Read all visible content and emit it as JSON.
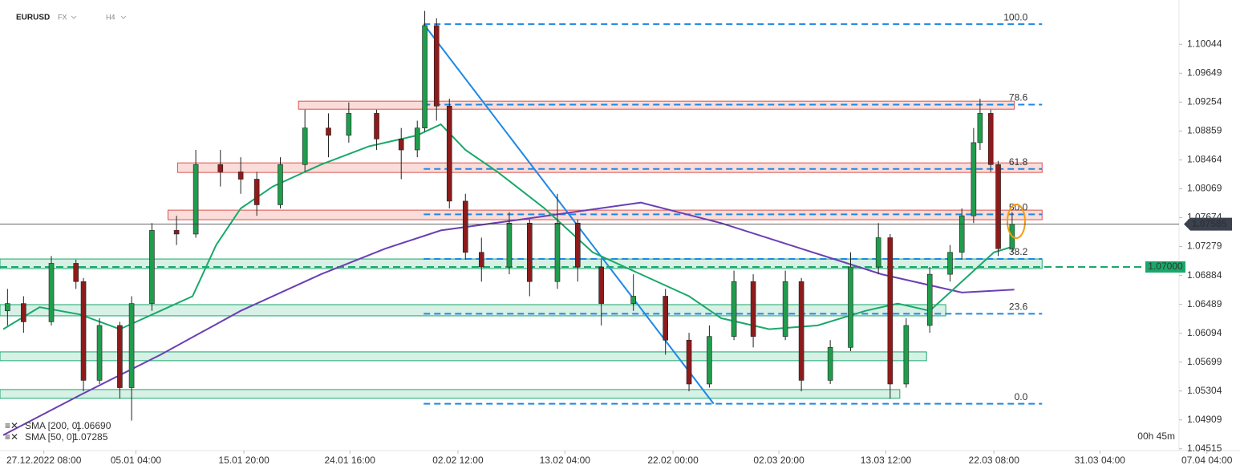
{
  "header": {
    "symbol": "EURUSD",
    "market": "FX",
    "timeframe": "H4"
  },
  "chart_data": {
    "type": "candlestick",
    "x": [
      -3.4,
      -1.9,
      0.7,
      3.0,
      3.7,
      5.2,
      7.1,
      8.2,
      10.1,
      12.4,
      14.2,
      16.5,
      18.4,
      19.9,
      22.1,
      24.4,
      26.6,
      28.5,
      31.1,
      33.4,
      34.9,
      35.6,
      36.7,
      37.9,
      39.4,
      40.9,
      43.5,
      45.4,
      48.0,
      49.9,
      52.1,
      55.1,
      58.1,
      60.3,
      62.2,
      64.5,
      66.3,
      69.3,
      70.8,
      73.5,
      75.4,
      78.0,
      79.1,
      80.6,
      82.8,
      84.7,
      85.8,
      86.9,
      87.5,
      88.5,
      89.2,
      90.5
    ],
    "open": [
      1.064,
      1.065,
      1.0625,
      1.0705,
      1.068,
      1.0545,
      1.062,
      1.0535,
      1.065,
      1.075,
      1.0745,
      1.084,
      1.083,
      1.082,
      1.0785,
      1.084,
      1.089,
      1.088,
      1.091,
      1.0875,
      1.086,
      1.089,
      1.103,
      1.092,
      1.079,
      1.072,
      1.07,
      1.076,
      1.068,
      1.076,
      1.07,
      1.065,
      1.066,
      1.06,
      1.054,
      1.0605,
      1.068,
      1.0605,
      1.068,
      1.0545,
      1.059,
      1.07,
      1.074,
      1.054,
      1.062,
      1.069,
      1.072,
      1.077,
      1.087,
      1.091,
      1.084,
      1.0725
    ],
    "high": [
      1.067,
      1.066,
      1.0715,
      1.071,
      1.0685,
      1.063,
      1.0625,
      1.066,
      1.076,
      1.077,
      1.086,
      1.086,
      1.085,
      1.083,
      1.085,
      1.0915,
      1.091,
      1.0925,
      1.0915,
      1.089,
      1.09,
      1.105,
      1.104,
      1.093,
      1.08,
      1.074,
      1.0775,
      1.0765,
      1.08,
      1.0765,
      1.071,
      1.069,
      1.067,
      1.061,
      1.062,
      1.0695,
      1.069,
      1.0695,
      1.0685,
      1.06,
      1.072,
      1.076,
      1.0745,
      1.063,
      1.07,
      1.073,
      1.078,
      1.089,
      1.093,
      1.0915,
      1.0845,
      1.0775
    ],
    "low": [
      1.062,
      1.061,
      1.062,
      1.067,
      1.053,
      1.054,
      1.052,
      1.049,
      1.064,
      1.073,
      1.074,
      1.081,
      1.08,
      1.077,
      1.078,
      1.083,
      1.085,
      1.087,
      1.086,
      1.082,
      1.085,
      1.0885,
      1.09,
      1.078,
      1.071,
      1.068,
      1.069,
      1.066,
      1.067,
      1.068,
      1.062,
      1.064,
      1.058,
      1.053,
      1.0535,
      1.06,
      1.059,
      1.06,
      1.053,
      1.054,
      1.0585,
      1.069,
      1.052,
      1.0535,
      1.061,
      1.068,
      1.071,
      1.076,
      1.086,
      1.083,
      1.0715,
      1.072
    ],
    "close": [
      1.065,
      1.0625,
      1.0705,
      1.068,
      1.0545,
      1.062,
      1.0535,
      1.065,
      1.075,
      1.0745,
      1.084,
      1.083,
      1.082,
      1.0785,
      1.084,
      1.089,
      1.088,
      1.091,
      1.0875,
      1.086,
      1.089,
      1.103,
      1.092,
      1.079,
      1.072,
      1.07,
      1.076,
      1.068,
      1.076,
      1.07,
      1.065,
      1.066,
      1.06,
      1.054,
      1.0605,
      1.068,
      1.0605,
      1.068,
      1.0545,
      1.059,
      1.07,
      1.074,
      1.054,
      1.062,
      1.069,
      1.072,
      1.077,
      1.087,
      1.091,
      1.084,
      1.0725,
      1.07585
    ],
    "up_color": "#1f9d4c",
    "down_color": "#8e1b1b",
    "xlim": [
      -4.1,
      106.1
    ],
    "xticks": [
      {
        "value": 0,
        "label": "27.12.2022  08:00"
      },
      {
        "value": 8.6,
        "label": "05.01  04:00"
      },
      {
        "value": 18.7,
        "label": "15.01  20:00"
      },
      {
        "value": 28.6,
        "label": "24.01  16:00"
      },
      {
        "value": 38.7,
        "label": "02.02  12:00"
      },
      {
        "value": 48.7,
        "label": "13.02  04:00"
      },
      {
        "value": 58.8,
        "label": "22.02  00:00"
      },
      {
        "value": 68.7,
        "label": "02.03  20:00"
      },
      {
        "value": 78.7,
        "label": "13.03  12:00"
      },
      {
        "value": 88.8,
        "label": "22.03  08:00"
      },
      {
        "value": 98.7,
        "label": "31.03  04:00"
      },
      {
        "value": 108.7,
        "label": "07.04  04:00"
      }
    ],
    "ylim": [
      1.0449,
      1.1065
    ],
    "yticks": [
      1.10044,
      1.09649,
      1.09254,
      1.08859,
      1.08464,
      1.08069,
      1.07674,
      1.07279,
      1.06884,
      1.06489,
      1.06094,
      1.05699,
      1.05304,
      1.04909,
      1.04515
    ],
    "overlays": [
      {
        "name": "SMA [200, 0]",
        "color": "#6a3fb5",
        "x": [
          -3.8,
          3.4,
          10.9,
          18.4,
          25.9,
          31.9,
          37.1,
          44.6,
          55.8,
          63.3,
          70.8,
          78.3,
          85.8,
          90.7
        ],
        "values": [
          1.047,
          1.0525,
          1.058,
          1.064,
          1.069,
          1.0725,
          1.075,
          1.0765,
          1.0788,
          1.076,
          1.0725,
          1.069,
          1.0665,
          1.0669
        ],
        "last_value": {
          "value": 1.0669,
          "label": "1.06690"
        }
      },
      {
        "name": "SMA [50, 0]",
        "color": "#1aa86a",
        "x": [
          -3.8,
          -0.4,
          3.4,
          7.1,
          10.9,
          13.9,
          16.1,
          18.4,
          21.4,
          25.9,
          30.4,
          34.9,
          37.1,
          39.4,
          42.4,
          46.8,
          51.3,
          55.8,
          60.3,
          63.3,
          67.8,
          72.3,
          76.8,
          79.8,
          82.8,
          85.8,
          88.8,
          90.7
        ],
        "values": [
          1.0615,
          1.0645,
          1.0635,
          1.0615,
          1.064,
          1.066,
          1.073,
          1.078,
          1.081,
          1.084,
          1.0865,
          1.088,
          1.0895,
          1.086,
          1.083,
          1.078,
          1.072,
          1.069,
          1.066,
          1.063,
          1.0615,
          1.062,
          1.064,
          1.065,
          1.064,
          1.068,
          1.072,
          1.07285
        ],
        "last_value": {
          "value": 1.07285,
          "label": "1.07285"
        }
      }
    ],
    "fibonacci": {
      "color": "#1e88e5",
      "x": [
        35.5,
        93.3
      ],
      "levels": [
        {
          "value": 100,
          "label": "100.0"
        },
        78.6,
        61.8,
        {
          "value": 50,
          "label": "50.0"
        },
        38.2,
        23.6,
        {
          "value": 0,
          "label": "0.0"
        }
      ],
      "prices": [
        1.1032,
        1.0922,
        1.0834,
        1.0772,
        1.0711,
        1.0636,
        1.0513
      ]
    },
    "trendline": {
      "color": "#1e88e5",
      "x": [
        35.5,
        62.6
      ],
      "values": [
        1.1032,
        1.0513
      ]
    },
    "zones": [
      {
        "color": "#f9d3d0",
        "border": "#d9534f",
        "x": [
          23.8,
          90.7
        ],
        "range": [
          1.09157,
          1.09267
        ]
      },
      {
        "color": "#f9d3d0",
        "border": "#d9534f",
        "x": [
          12.5,
          93.3
        ],
        "range": [
          1.08292,
          1.08423
        ]
      },
      {
        "color": "#f9d3d0",
        "border": "#d9534f",
        "x": [
          11.6,
          93.3
        ],
        "range": [
          1.07646,
          1.07777
        ]
      },
      {
        "color": "#cdeee0",
        "border": "#1aa86a",
        "x": [
          -4.1,
          93.3
        ],
        "range": [
          1.06978,
          1.07109
        ]
      },
      {
        "color": "#cdeee0",
        "border": "#1aa86a",
        "x": [
          -4.1,
          84.3
        ],
        "range": [
          1.06332,
          1.06485
        ]
      },
      {
        "color": "#cdeee0",
        "border": "#1aa86a",
        "x": [
          -4.1,
          82.5
        ],
        "range": [
          1.05719,
          1.05839
        ]
      },
      {
        "color": "#cdeee0",
        "border": "#1aa86a",
        "x": [
          -4.1,
          80.0
        ],
        "range": [
          1.05204,
          1.05324
        ]
      }
    ],
    "levels": [
      {
        "value": 1.07,
        "label": "1.07000",
        "color": "#1aa86a"
      }
    ],
    "last_price": 1.07585,
    "countdown": "00h 45m"
  }
}
